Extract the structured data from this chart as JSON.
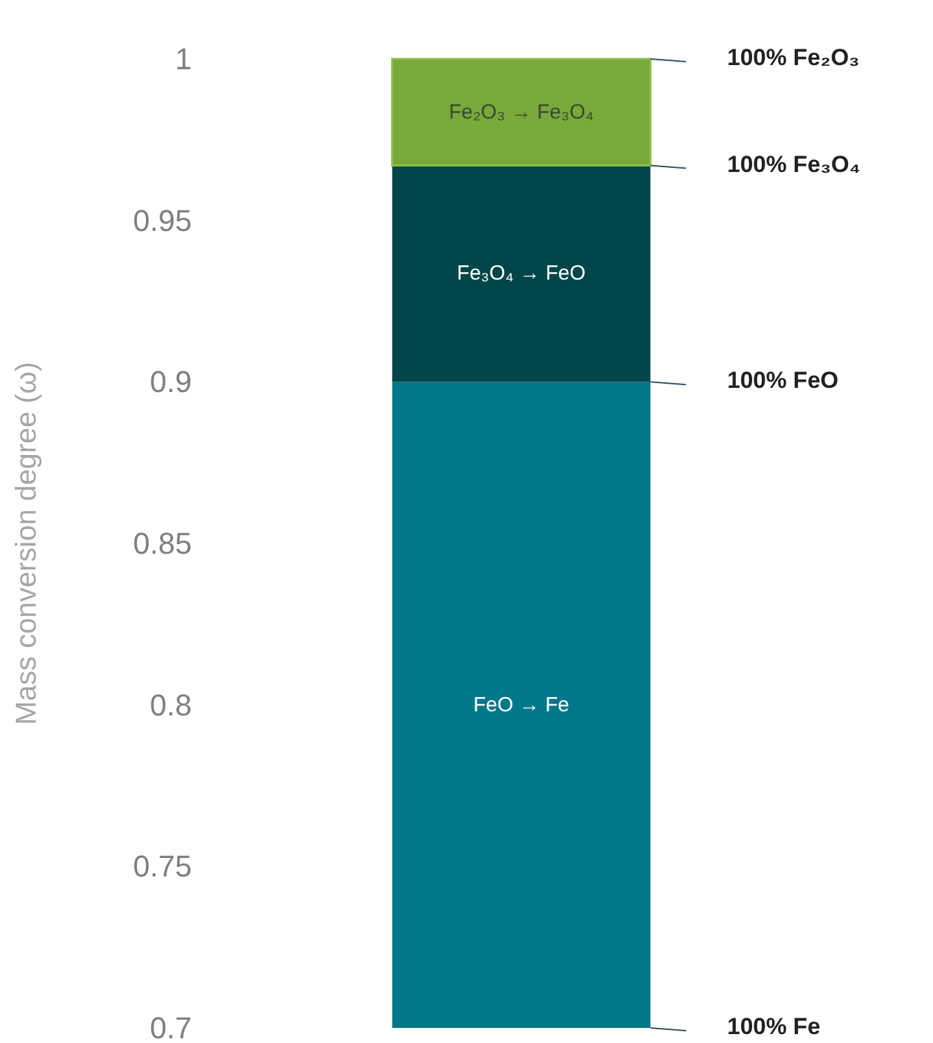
{
  "chart_data": {
    "type": "bar",
    "ylabel": "Mass conversion degree (ω)",
    "categories": [
      null
    ],
    "series": [
      {
        "name": "FeO → Fe",
        "color": "#00788a",
        "base": [
          0.7
        ],
        "values": [
          0.2
        ]
      },
      {
        "name": "Fe₃O₄ → FeO",
        "color": "#004548",
        "base": [
          0.9
        ],
        "values": [
          0.067
        ]
      },
      {
        "name": "Fe₂O₃ → Fe₃O₄",
        "color": "#78a93a",
        "base": [
          0.967
        ],
        "values": [
          0.033
        ]
      }
    ],
    "ylim": [
      0.7,
      1
    ],
    "yticks": [
      0.7,
      0.75,
      0.8,
      0.85,
      0.9,
      0.95,
      1
    ],
    "grid": false,
    "legend": false,
    "annotations": [
      "100% Fe₂O₃",
      "100% Fe₃O₄",
      "100% FeO",
      "100% Fe"
    ]
  }
}
